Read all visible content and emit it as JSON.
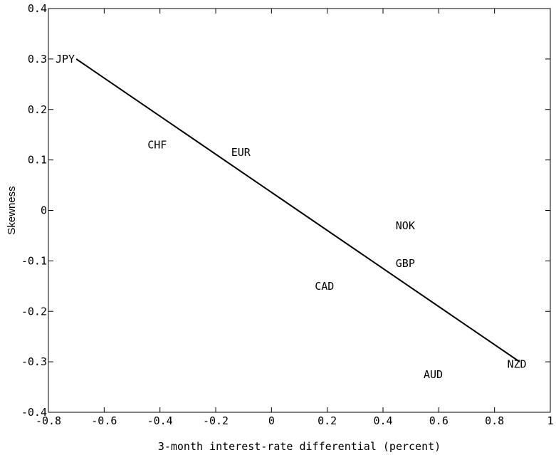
{
  "chart_data": {
    "type": "scatter",
    "xlabel": "3-month interest-rate differential (percent)",
    "ylabel": "Skewness",
    "xlim": [
      -0.8,
      1
    ],
    "ylim": [
      -0.4,
      0.4
    ],
    "x_ticks": [
      -0.8,
      -0.6,
      -0.4,
      -0.2,
      0,
      0.2,
      0.4,
      0.6,
      0.8,
      1
    ],
    "x_tick_labels": [
      "-0.8",
      "-0.6",
      "-0.4",
      "-0.2",
      "0",
      "0.2",
      "0.4",
      "0.6",
      "0.8",
      "1"
    ],
    "y_ticks": [
      0.4,
      0.3,
      0.2,
      0.1,
      0,
      -0.1,
      -0.2,
      -0.3,
      -0.4
    ],
    "y_tick_labels": [
      "0.4",
      "0.3",
      "0.2",
      "0.1",
      "0",
      "-0.1",
      "-0.2",
      "-0.3",
      "-0.4"
    ],
    "points": [
      {
        "label": "JPY",
        "x": -0.74,
        "y": 0.3
      },
      {
        "label": "CHF",
        "x": -0.41,
        "y": 0.13
      },
      {
        "label": "EUR",
        "x": -0.11,
        "y": 0.115
      },
      {
        "label": "NOK",
        "x": 0.48,
        "y": -0.03
      },
      {
        "label": "GBP",
        "x": 0.48,
        "y": -0.105
      },
      {
        "label": "CAD",
        "x": 0.19,
        "y": -0.15
      },
      {
        "label": "AUD",
        "x": 0.58,
        "y": -0.325
      },
      {
        "label": "NZD",
        "x": 0.88,
        "y": -0.305
      }
    ],
    "fit_line": {
      "x": [
        -0.7,
        0.89
      ],
      "y": [
        0.3,
        -0.3
      ]
    },
    "grid": false
  }
}
